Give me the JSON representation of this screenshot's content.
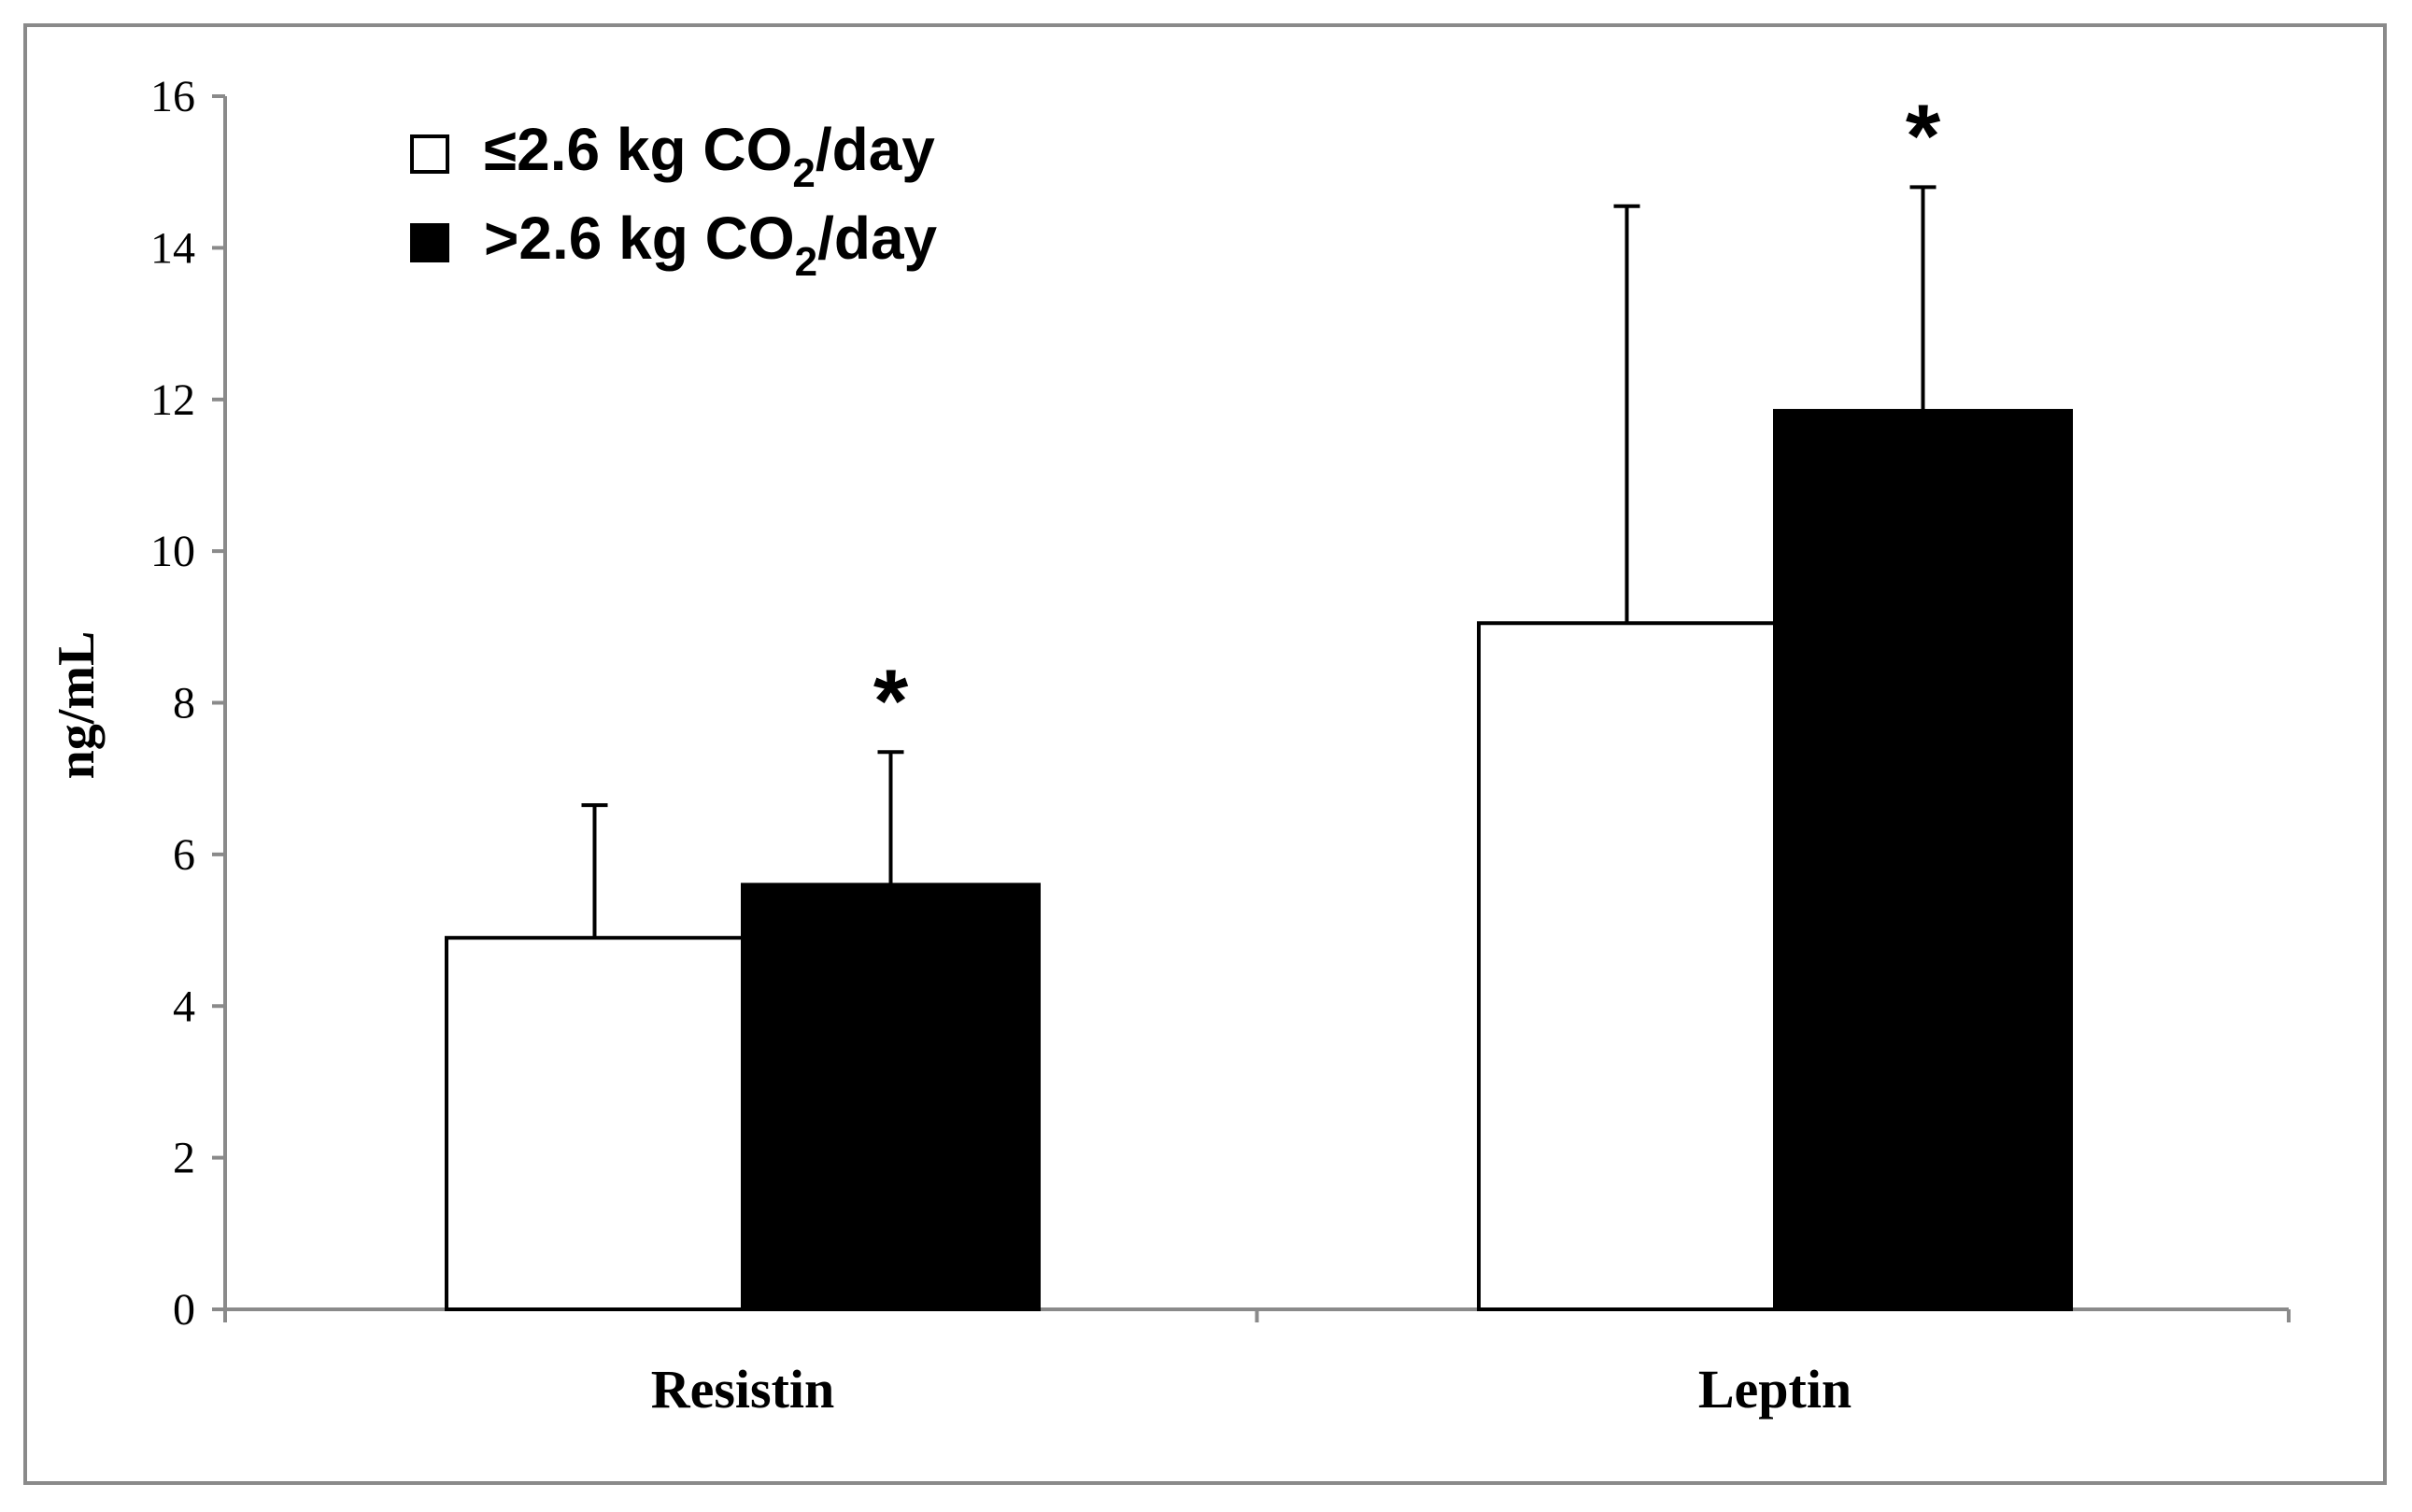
{
  "chart_data": {
    "type": "bar",
    "title": "",
    "xlabel": "",
    "ylabel": "ng/mL",
    "ylim": [
      0,
      16
    ],
    "yticks": [
      0,
      2,
      4,
      6,
      8,
      10,
      12,
      14,
      16
    ],
    "grid": false,
    "legend_position": "top-left",
    "categories": [
      "Resistin",
      "Leptin"
    ],
    "series": [
      {
        "name": "≤2.6 kg CO2/day",
        "legend_main": "≤2.6 kg CO",
        "legend_sub": "2",
        "legend_tail": "/day",
        "fill": "#ffffff",
        "values": [
          4.9,
          9.05
        ],
        "error": [
          1.75,
          5.5
        ],
        "significant": [
          false,
          false
        ]
      },
      {
        "name": ">2.6 kg CO2/day",
        "legend_main": ">2.6 kg CO",
        "legend_sub": "2",
        "legend_tail": "/day",
        "fill": "#000000",
        "values": [
          5.6,
          11.85
        ],
        "error": [
          1.75,
          2.95
        ],
        "significant": [
          true,
          true
        ]
      }
    ],
    "significance_marker": "*"
  }
}
